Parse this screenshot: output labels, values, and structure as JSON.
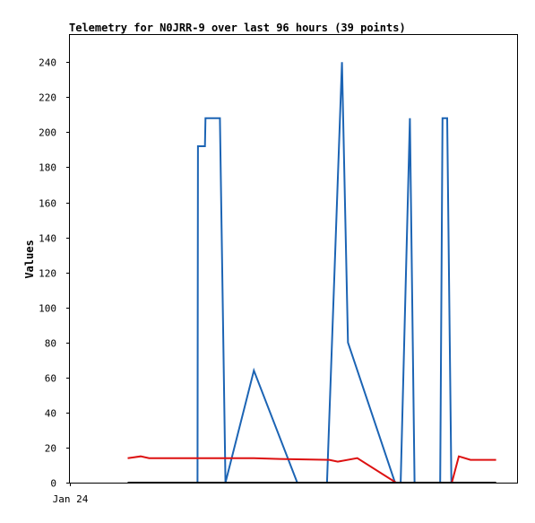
{
  "chart_data": {
    "type": "line",
    "title": "Telemetry for N0JRR-9 over last 96 hours (39 points)",
    "xlabel": "",
    "ylabel": "Values",
    "x_tick_labels": [
      "Jan 24"
    ],
    "yticks": [
      0,
      20,
      40,
      60,
      80,
      100,
      120,
      140,
      160,
      180,
      200,
      220,
      240
    ],
    "ylim": [
      0,
      256
    ],
    "xlim": [
      0,
      96
    ],
    "grid": false,
    "legend": "none",
    "series": [
      {
        "color": "#1c64b4",
        "points": [
          [
            27.4,
            0
          ],
          [
            27.5,
            192
          ],
          [
            29.0,
            192
          ],
          [
            29.1,
            208
          ],
          [
            32.2,
            208
          ],
          [
            33.4,
            0
          ],
          [
            39.5,
            64
          ],
          [
            48.8,
            0
          ],
          [
            55.2,
            0
          ],
          [
            58.4,
            240
          ],
          [
            59.7,
            80
          ],
          [
            69.8,
            0
          ],
          [
            71.0,
            0
          ],
          [
            73.0,
            208
          ],
          [
            74.0,
            0
          ],
          [
            79.5,
            0
          ],
          [
            80.0,
            208
          ],
          [
            81.0,
            208
          ],
          [
            81.9,
            0
          ]
        ]
      },
      {
        "color": "#dd1111",
        "points": [
          [
            12.4,
            14
          ],
          [
            15.2,
            15
          ],
          [
            17.0,
            14
          ],
          [
            39.5,
            14
          ],
          [
            45.0,
            13.5
          ],
          [
            55.7,
            13
          ],
          [
            57.5,
            12
          ],
          [
            61.7,
            14
          ],
          [
            70.0,
            0
          ],
          [
            82.0,
            0
          ],
          [
            83.5,
            15
          ],
          [
            86.0,
            13
          ],
          [
            91.5,
            13
          ]
        ]
      },
      {
        "color": "#000000",
        "points": [
          [
            12.4,
            0
          ],
          [
            91.5,
            0
          ]
        ]
      }
    ]
  }
}
